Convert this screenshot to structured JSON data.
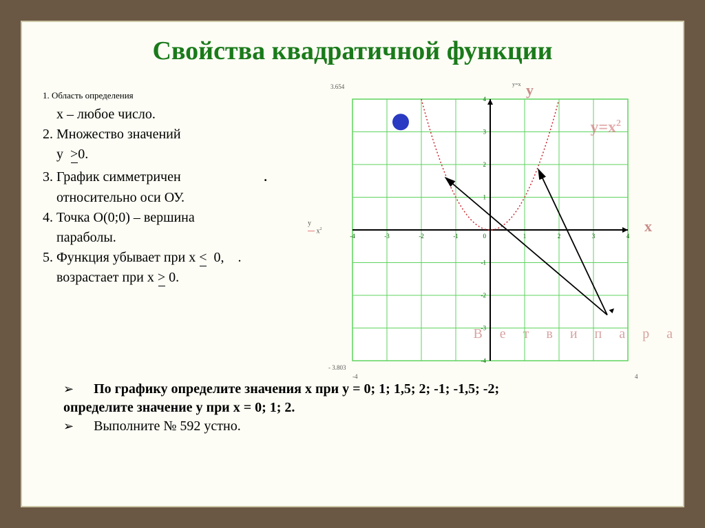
{
  "title": "Свойства квадратичной функции",
  "properties": {
    "p1a": "1. Область определения",
    "p1b": "    х – любое число.",
    "p2a": "2. Множество значений",
    "p2b_pre": "    y  ",
    "p2b_post": "0.",
    "p3a": "3. График симметричен",
    "p3b": "    относительно оси ОУ.",
    "p4a": "4. Точка О(0;0) – вершина",
    "p4b": "    параболы.",
    "p5a_pre": "5. Функция убывает при х ",
    "p5a_post": "  0,    .",
    "p5b_pre": "    возрастает при х ",
    "p5b_post": " 0."
  },
  "footer": {
    "line1": "        По графику определите значения х при у = 0; 1;  1,5; 2;  -1; -1,5; -2;",
    "line2": "определите значение у при х = 0; 1; 2.",
    "line3": "        Выполните № 592 устно."
  },
  "chart": {
    "xlim": [
      -4,
      4
    ],
    "ylim": [
      -4,
      4
    ],
    "grid_step": 1,
    "background": "#ffffff",
    "grid_color": "#5dd35d",
    "axis_color": "#000000",
    "parabola_color": "#c8282e",
    "parabola_a": 1,
    "parabola_range": [
      -2,
      2
    ],
    "formula_label": "y=x",
    "y_axis_label": "у",
    "x_axis_label": "х",
    "formula_tiny": "x",
    "tiny_top": "3.654",
    "tiny_bot": "- 3.803",
    "tiny_left": "-4",
    "tiny_right": "4",
    "branches": "В е т в и   п а р а",
    "yx_top": "y=x",
    "blue_dot_color": "#2a3ac2",
    "blue_dot_radius": 12,
    "blue_dot_pos": [
      -2.6,
      3.3
    ],
    "arrows": [
      {
        "from": [
          3.4,
          -2.6
        ],
        "to": [
          -1.3,
          1.6
        ]
      },
      {
        "from": [
          3.4,
          -2.6
        ],
        "to": [
          1.4,
          1.85
        ]
      }
    ],
    "tick_fontsize": 9,
    "tick_color": "#006000"
  }
}
